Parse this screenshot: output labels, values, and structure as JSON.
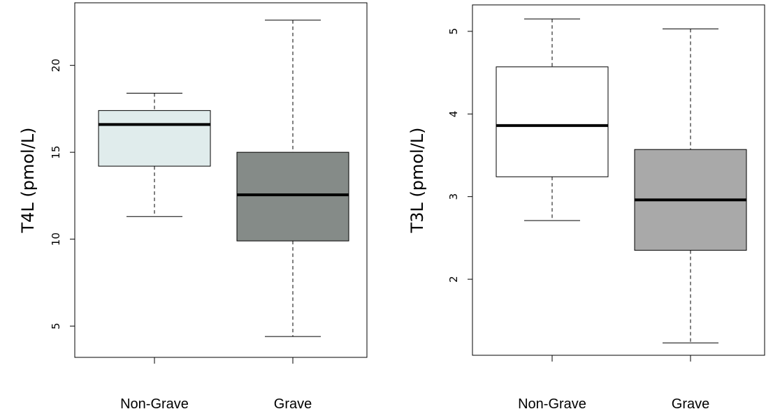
{
  "chart_data": [
    {
      "type": "box",
      "ylabel": "T4L (pmol/L)",
      "categories": [
        "Non-Grave",
        "Grave"
      ],
      "yticks": [
        5,
        10,
        15,
        20
      ],
      "ylim": [
        3.2,
        23.6
      ],
      "boxes": [
        {
          "category": "Non-Grave",
          "whisker_low": 11.3,
          "q1": 14.2,
          "median": 16.6,
          "q3": 17.4,
          "whisker_high": 18.4,
          "color": "#e0ecec"
        },
        {
          "category": "Grave",
          "whisker_low": 4.4,
          "q1": 9.9,
          "median": 12.55,
          "q3": 15.0,
          "whisker_high": 22.6,
          "color": "#858b88"
        }
      ]
    },
    {
      "type": "box",
      "ylabel": "T3L (pmol/L)",
      "categories": [
        "Non-Grave",
        "Grave"
      ],
      "yticks": [
        2,
        3,
        4,
        5
      ],
      "ylim": [
        1.08,
        5.32
      ],
      "boxes": [
        {
          "category": "Non-Grave",
          "whisker_low": 2.71,
          "q1": 3.24,
          "median": 3.86,
          "q3": 4.57,
          "whisker_high": 5.15,
          "color": "#ffffff"
        },
        {
          "category": "Grave",
          "whisker_low": 1.23,
          "q1": 2.35,
          "median": 2.96,
          "q3": 3.57,
          "whisker_high": 5.03,
          "color": "#a9a9a9"
        }
      ]
    }
  ]
}
